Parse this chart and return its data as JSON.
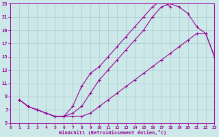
{
  "xlabel": "Windchill (Refroidissement éolien,°C)",
  "xlim": [
    0,
    23
  ],
  "ylim": [
    5,
    23
  ],
  "xticks": [
    0,
    1,
    2,
    3,
    4,
    5,
    6,
    7,
    8,
    9,
    10,
    11,
    12,
    13,
    14,
    15,
    16,
    17,
    18,
    19,
    20,
    21,
    22,
    23
  ],
  "yticks": [
    5,
    7,
    9,
    11,
    13,
    15,
    17,
    19,
    21,
    23
  ],
  "bg_color": "#cce8e8",
  "grid_color": "#aacccc",
  "line_color": "#990099",
  "curve1_x": [
    1,
    2,
    3,
    4,
    5,
    6,
    7,
    8,
    9,
    10,
    11,
    12,
    13,
    14,
    15,
    16,
    17,
    18,
    19,
    20,
    21,
    22,
    23
  ],
  "curve1_y": [
    8.5,
    7.5,
    7.0,
    6.5,
    6.0,
    6.0,
    6.5,
    7.5,
    9.5,
    11.5,
    13.0,
    14.5,
    16.0,
    17.5,
    19.0,
    21.0,
    22.5,
    23.0,
    22.5,
    21.5,
    19.5,
    18.5,
    15.0
  ],
  "curve2_x": [
    1,
    2,
    3,
    4,
    5,
    6,
    7,
    8,
    9,
    10,
    11,
    12,
    13,
    14,
    15,
    16,
    17,
    18
  ],
  "curve2_y": [
    8.5,
    7.5,
    7.0,
    6.5,
    6.0,
    6.0,
    7.5,
    10.5,
    12.5,
    13.5,
    15.0,
    16.5,
    18.0,
    19.5,
    21.0,
    22.5,
    23.5,
    22.5
  ],
  "curve3_x": [
    1,
    2,
    3,
    4,
    5,
    6,
    7,
    8,
    9,
    10,
    11,
    12,
    13,
    14,
    15,
    16,
    17,
    18,
    19,
    20,
    21,
    22,
    23
  ],
  "curve3_y": [
    8.5,
    7.5,
    7.0,
    6.5,
    6.0,
    6.0,
    6.0,
    6.0,
    6.5,
    7.5,
    8.5,
    9.5,
    10.5,
    11.5,
    12.5,
    13.5,
    14.5,
    15.5,
    16.5,
    17.5,
    18.5,
    18.5,
    15.0
  ]
}
